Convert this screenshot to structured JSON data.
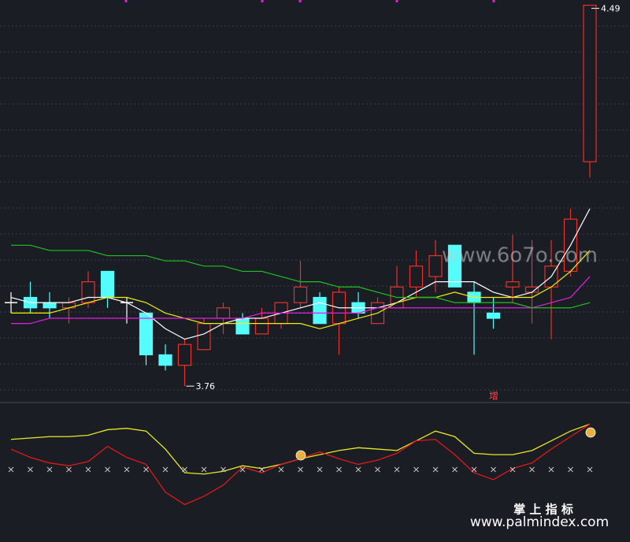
{
  "chart_data": [
    {
      "type": "candlestick",
      "open": [
        3.92,
        3.93,
        3.92,
        3.91,
        3.92,
        3.98,
        3.92,
        3.9,
        3.82,
        3.8,
        3.83,
        3.89,
        3.89,
        3.86,
        3.88,
        3.92,
        3.93,
        3.88,
        3.92,
        3.88,
        3.91,
        3.95,
        3.97,
        4.03,
        3.94,
        3.9,
        3.95,
        3.94,
        3.95,
        3.98,
        4.19
      ],
      "high": [
        3.94,
        3.96,
        3.94,
        3.93,
        3.98,
        3.98,
        3.93,
        3.9,
        3.84,
        3.85,
        3.89,
        3.92,
        3.9,
        3.91,
        3.92,
        4.0,
        3.94,
        3.95,
        3.94,
        3.93,
        3.99,
        4.02,
        4.04,
        4.03,
        3.96,
        3.93,
        4.05,
        4.04,
        4.04,
        4.1,
        4.49
      ],
      "low": [
        3.9,
        3.9,
        3.89,
        3.88,
        3.91,
        3.91,
        3.88,
        3.8,
        3.79,
        3.76,
        3.83,
        3.86,
        3.86,
        3.86,
        3.87,
        3.91,
        3.88,
        3.82,
        3.89,
        3.88,
        3.91,
        3.93,
        3.94,
        3.95,
        3.82,
        3.87,
        3.92,
        3.88,
        3.85,
        3.97,
        4.16
      ],
      "close": [
        3.92,
        3.91,
        3.91,
        3.92,
        3.96,
        3.93,
        3.92,
        3.82,
        3.8,
        3.84,
        3.88,
        3.91,
        3.86,
        3.89,
        3.92,
        3.95,
        3.88,
        3.94,
        3.9,
        3.92,
        3.95,
        3.99,
        4.01,
        3.95,
        3.92,
        3.89,
        3.96,
        3.95,
        3.99,
        4.08,
        4.49
      ],
      "up_color": "#e8312c",
      "down_color": "#54fcfc",
      "flat_color": "#ffffff",
      "series": [
        {
          "color": "#ffffff",
          "values": [
            3.93,
            3.92,
            3.92,
            3.92,
            3.93,
            3.93,
            3.92,
            3.9,
            3.87,
            3.85,
            3.86,
            3.88,
            3.89,
            3.89,
            3.9,
            3.91,
            3.92,
            3.91,
            3.91,
            3.91,
            3.92,
            3.94,
            3.96,
            3.96,
            3.96,
            3.94,
            3.93,
            3.94,
            3.97,
            4.03,
            4.1
          ]
        },
        {
          "color": "#f0f000",
          "values": [
            3.9,
            3.9,
            3.9,
            3.91,
            3.92,
            3.93,
            3.93,
            3.92,
            3.9,
            3.89,
            3.88,
            3.88,
            3.88,
            3.88,
            3.88,
            3.88,
            3.87,
            3.88,
            3.89,
            3.9,
            3.92,
            3.93,
            3.93,
            3.94,
            3.93,
            3.93,
            3.93,
            3.93,
            3.95,
            3.98,
            4.02
          ]
        },
        {
          "color": "#e020e0",
          "values": [
            3.88,
            3.88,
            3.89,
            3.89,
            3.89,
            3.89,
            3.89,
            3.89,
            3.89,
            3.89,
            3.89,
            3.89,
            3.89,
            3.9,
            3.9,
            3.9,
            3.9,
            3.9,
            3.9,
            3.91,
            3.91,
            3.91,
            3.91,
            3.91,
            3.91,
            3.91,
            3.91,
            3.91,
            3.92,
            3.93,
            3.97
          ]
        },
        {
          "color": "#20c020",
          "values": [
            4.03,
            4.03,
            4.02,
            4.02,
            4.02,
            4.01,
            4.01,
            4.01,
            4.0,
            4.0,
            3.99,
            3.99,
            3.98,
            3.98,
            3.97,
            3.96,
            3.96,
            3.95,
            3.95,
            3.94,
            3.93,
            3.93,
            3.93,
            3.92,
            3.92,
            3.92,
            3.92,
            3.91,
            3.91,
            3.91,
            3.92
          ]
        }
      ],
      "ylim": [
        3.73,
        4.5
      ],
      "max_label": 4.49,
      "min_label": 3.76,
      "annotation": "增",
      "watermark": "www.6o7o.com"
    },
    {
      "type": "line",
      "ylim": [
        0,
        100
      ],
      "series": [
        {
          "color": "#e8e820",
          "values": [
            74,
            75,
            76,
            76,
            77,
            81,
            82,
            80,
            67,
            50,
            49,
            51,
            55,
            53,
            56,
            60,
            63,
            66,
            68,
            67,
            66,
            73,
            80,
            76,
            64,
            63,
            63,
            66,
            73,
            80,
            85
          ]
        },
        {
          "color": "#e01818",
          "values": [
            67,
            61,
            57,
            55,
            58,
            69,
            61,
            56,
            36,
            27,
            33,
            41,
            54,
            50,
            56,
            60,
            65,
            60,
            56,
            59,
            64,
            73,
            74,
            63,
            50,
            45,
            53,
            57,
            67,
            76,
            85
          ]
        }
      ]
    }
  ],
  "brand": {
    "name": "掌 上 指 标",
    "url": "www.palmindex.com"
  }
}
